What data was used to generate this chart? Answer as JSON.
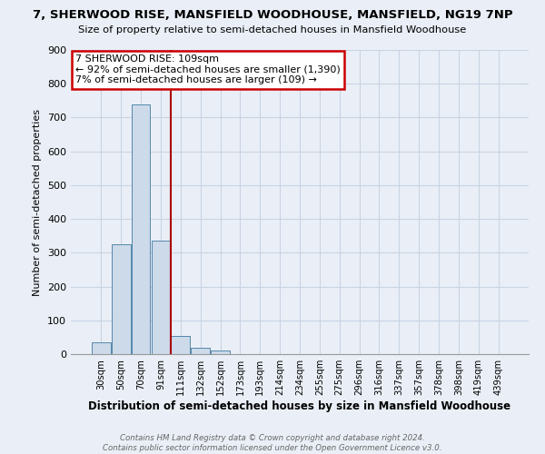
{
  "title1": "7, SHERWOOD RISE, MANSFIELD WOODHOUSE, MANSFIELD, NG19 7NP",
  "title2": "Size of property relative to semi-detached houses in Mansfield Woodhouse",
  "xlabel": "Distribution of semi-detached houses by size in Mansfield Woodhouse",
  "ylabel": "Number of semi-detached properties",
  "categories": [
    "30sqm",
    "50sqm",
    "70sqm",
    "91sqm",
    "111sqm",
    "132sqm",
    "152sqm",
    "173sqm",
    "193sqm",
    "214sqm",
    "234sqm",
    "255sqm",
    "275sqm",
    "296sqm",
    "316sqm",
    "337sqm",
    "357sqm",
    "378sqm",
    "398sqm",
    "419sqm",
    "439sqm"
  ],
  "bar_values": [
    35,
    325,
    740,
    335,
    55,
    20,
    10,
    0,
    0,
    0,
    0,
    0,
    0,
    0,
    0,
    0,
    0,
    0,
    0,
    0,
    0
  ],
  "bar_color": "#ccdaea",
  "bar_edge_color": "#5588aa",
  "property_line_x": 3.5,
  "annotation_title": "7 SHERWOOD RISE: 109sqm",
  "annotation_line1": "← 92% of semi-detached houses are smaller (1,390)",
  "annotation_line2": "7% of semi-detached houses are larger (109) →",
  "annotation_box_facecolor": "#ffffff",
  "annotation_box_edgecolor": "#cc0000",
  "vline_color": "#aa0000",
  "ylim": [
    0,
    900
  ],
  "yticks": [
    0,
    100,
    200,
    300,
    400,
    500,
    600,
    700,
    800,
    900
  ],
  "grid_color": "#c8d4e4",
  "bg_color": "#eaeff7",
  "footer1": "Contains HM Land Registry data © Crown copyright and database right 2024.",
  "footer2": "Contains public sector information licensed under the Open Government Licence v3.0."
}
